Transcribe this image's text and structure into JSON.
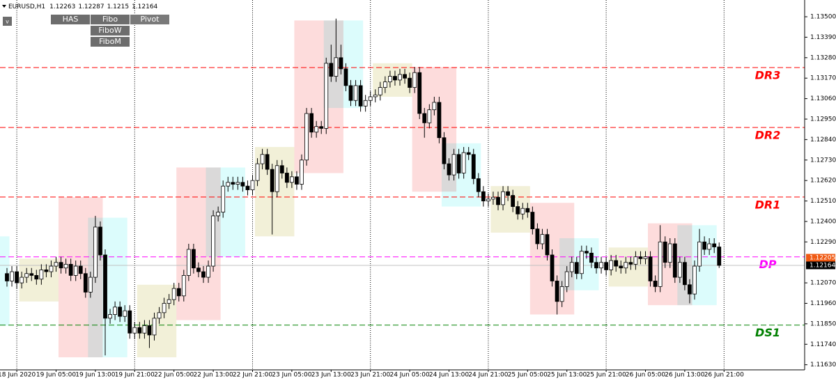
{
  "chart_data": {
    "type": "candlestick",
    "symbol": "EURUSD,H1",
    "buttons": [
      "HAS",
      "Fibo",
      "Pivot",
      "FiboW",
      "FiboM"
    ],
    "menu_button": "v",
    "ylim": [
      1.1161,
      1.1359
    ],
    "yticks": [
      {
        "value": 1.135,
        "label": "1.13500"
      },
      {
        "value": 1.1339,
        "label": "1.13390"
      },
      {
        "value": 1.1328,
        "label": "1.13280"
      },
      {
        "value": 1.1317,
        "label": "1.13170"
      },
      {
        "value": 1.1306,
        "label": "1.13060"
      },
      {
        "value": 1.1295,
        "label": "1.12950"
      },
      {
        "value": 1.1284,
        "label": "1.12840"
      },
      {
        "value": 1.1273,
        "label": "1.12730"
      },
      {
        "value": 1.1262,
        "label": "1.12620"
      },
      {
        "value": 1.1251,
        "label": "1.12510"
      },
      {
        "value": 1.124,
        "label": "1.12400"
      },
      {
        "value": 1.1229,
        "label": "1.12290"
      },
      {
        "value": 1.1207,
        "label": "1.12070"
      },
      {
        "value": 1.1196,
        "label": "1.11960"
      },
      {
        "value": 1.1185,
        "label": "1.11850"
      },
      {
        "value": 1.1174,
        "label": "1.11740"
      },
      {
        "value": 1.1163,
        "label": "1.11630"
      }
    ],
    "xticks": [
      {
        "value": 2,
        "label": "18 Jun 2020"
      },
      {
        "value": 10,
        "label": "19 Jun 05:00"
      },
      {
        "value": 18,
        "label": "19 Jun 13:00"
      },
      {
        "value": 26,
        "label": "19 Jun 21:00"
      },
      {
        "value": 34,
        "label": "22 Jun 05:00"
      },
      {
        "value": 42,
        "label": "22 Jun 13:00"
      },
      {
        "value": 50,
        "label": "22 Jun 21:00"
      },
      {
        "value": 58,
        "label": "23 Jun 05:00"
      },
      {
        "value": 66,
        "label": "23 Jun 13:00"
      },
      {
        "value": 74,
        "label": "23 Jun 21:00"
      },
      {
        "value": 82,
        "label": "24 Jun 05:00"
      },
      {
        "value": 90,
        "label": "24 Jun 13:00"
      },
      {
        "value": 98,
        "label": "24 Jun 21:00"
      },
      {
        "value": 106,
        "label": "25 Jun 05:00"
      },
      {
        "value": 114,
        "label": "25 Jun 13:00"
      },
      {
        "value": 122,
        "label": "25 Jun 21:00"
      },
      {
        "value": 130,
        "label": "26 Jun 05:00"
      },
      {
        "value": 138,
        "label": "26 Jun 13:00"
      },
      {
        "value": 146,
        "label": "26 Jun 21:00"
      }
    ],
    "up_color": "#ffffff",
    "down_color": "#000000",
    "open": [
      1.1212,
      1.1208,
      1.1213,
      1.1207,
      1.121,
      1.1212,
      1.1211,
      1.1209,
      1.1214,
      1.1213,
      1.1216,
      1.1218,
      1.1215,
      1.1217,
      1.1211,
      1.1216,
      1.1212,
      1.1202,
      1.121,
      1.1237,
      1.1222,
      1.1188,
      1.119,
      1.1194,
      1.1189,
      1.1192,
      1.118,
      1.1183,
      1.118,
      1.1184,
      1.1179,
      1.1188,
      1.1191,
      1.1196,
      1.1198,
      1.1204,
      1.12,
      1.1211,
      1.1225,
      1.1215,
      1.1213,
      1.121,
      1.1216,
      1.1243,
      1.1245,
      1.1259,
      1.1261,
      1.126,
      1.1261,
      1.1259,
      1.1257,
      1.1262,
      1.1271,
      1.1276,
      1.1268,
      1.1256,
      1.127,
      1.1266,
      1.1261,
      1.1264,
      1.126,
      1.1273,
      1.1298,
      1.1288,
      1.1291,
      1.129,
      1.1325,
      1.1318,
      1.1328,
      1.1322,
      1.1313,
      1.1305,
      1.1313,
      1.1302,
      1.1305,
      1.1307,
      1.1308,
      1.1312,
      1.1315,
      1.1318,
      1.1316,
      1.1319,
      1.1317,
      1.1312,
      1.132,
      1.1298,
      1.1293,
      1.13,
      1.1304,
      1.1285,
      1.1271,
      1.1265,
      1.1276,
      1.1266,
      1.1277,
      1.1276,
      1.1263,
      1.1256,
      1.1251,
      1.1252,
      1.1253,
      1.1249,
      1.1256,
      1.1254,
      1.1248,
      1.1244,
      1.1247,
      1.1245,
      1.1236,
      1.1228,
      1.1233,
      1.1222,
      1.1208,
      1.1197,
      1.1205,
      1.1213,
      1.1218,
      1.1212,
      1.1224,
      1.1223,
      1.1218,
      1.1215,
      1.1218,
      1.1214,
      1.1219,
      1.1216,
      1.1215,
      1.1218,
      1.1217,
      1.1221,
      1.122,
      1.1221,
      1.1208,
      1.1205,
      1.1229,
      1.1218,
      1.1228,
      1.121,
      1.1218,
      1.1206,
      1.1201,
      1.1216,
      1.1229,
      1.1225,
      1.1228,
      1.12263
    ],
    "high": [
      1.1215,
      1.1216,
      1.1216,
      1.1213,
      1.1215,
      1.1215,
      1.1214,
      1.1217,
      1.1217,
      1.1219,
      1.1221,
      1.1221,
      1.122,
      1.122,
      1.1219,
      1.1219,
      1.1215,
      1.1213,
      1.1243,
      1.124,
      1.1225,
      1.1193,
      1.1197,
      1.1197,
      1.1195,
      1.1195,
      1.1186,
      1.1186,
      1.1187,
      1.1187,
      1.1191,
      1.1194,
      1.1199,
      1.1201,
      1.1207,
      1.1207,
      1.1214,
      1.1228,
      1.1228,
      1.1218,
      1.1216,
      1.1219,
      1.1246,
      1.1248,
      1.1262,
      1.1264,
      1.1264,
      1.1264,
      1.1264,
      1.1262,
      1.1265,
      1.1274,
      1.1279,
      1.1279,
      1.1271,
      1.1273,
      1.1273,
      1.1269,
      1.1267,
      1.1267,
      1.1276,
      1.1301,
      1.1301,
      1.1294,
      1.1294,
      1.1328,
      1.1335,
      1.1349,
      1.1335,
      1.1325,
      1.1316,
      1.1316,
      1.1316,
      1.1308,
      1.131,
      1.1311,
      1.1315,
      1.1318,
      1.1321,
      1.1321,
      1.1322,
      1.1322,
      1.132,
      1.1323,
      1.1323,
      1.1301,
      1.1303,
      1.1307,
      1.1307,
      1.1288,
      1.1274,
      1.1279,
      1.1279,
      1.128,
      1.128,
      1.1279,
      1.1266,
      1.1259,
      1.1255,
      1.1256,
      1.1256,
      1.1259,
      1.1259,
      1.1257,
      1.1251,
      1.125,
      1.125,
      1.1248,
      1.1239,
      1.1236,
      1.1236,
      1.1225,
      1.1211,
      1.1208,
      1.1216,
      1.1221,
      1.1221,
      1.1227,
      1.1227,
      1.1226,
      1.1221,
      1.1221,
      1.1221,
      1.1222,
      1.1222,
      1.1219,
      1.1221,
      1.1221,
      1.1224,
      1.1224,
      1.1224,
      1.1224,
      1.1211,
      1.1238,
      1.1232,
      1.1231,
      1.1231,
      1.1221,
      1.1221,
      1.1209,
      1.1219,
      1.1236,
      1.1232,
      1.1231,
      1.1231,
      1.12287
    ],
    "low": [
      1.1205,
      1.1205,
      1.1204,
      1.1204,
      1.1207,
      1.1208,
      1.1206,
      1.1206,
      1.121,
      1.121,
      1.1213,
      1.1212,
      1.1212,
      1.1208,
      1.1208,
      1.1209,
      1.1199,
      1.1199,
      1.1207,
      1.1219,
      1.1168,
      1.1185,
      1.1187,
      1.1186,
      1.1186,
      1.1177,
      1.1177,
      1.1177,
      1.1177,
      1.1172,
      1.1176,
      1.1185,
      1.1188,
      1.1193,
      1.1195,
      1.1197,
      1.1197,
      1.1208,
      1.1212,
      1.121,
      1.1207,
      1.1207,
      1.1213,
      1.124,
      1.1242,
      1.1256,
      1.1257,
      1.1257,
      1.1256,
      1.1254,
      1.1254,
      1.1259,
      1.1268,
      1.1265,
      1.1233,
      1.1253,
      1.1263,
      1.1258,
      1.1258,
      1.1257,
      1.1257,
      1.127,
      1.1285,
      1.1285,
      1.1287,
      1.1287,
      1.1315,
      1.1315,
      1.1319,
      1.131,
      1.1302,
      1.1302,
      1.1299,
      1.1299,
      1.1302,
      1.1304,
      1.1305,
      1.1309,
      1.1312,
      1.1313,
      1.1313,
      1.1314,
      1.1309,
      1.1309,
      1.1295,
      1.1285,
      1.129,
      1.1297,
      1.1282,
      1.1268,
      1.1262,
      1.1262,
      1.1263,
      1.1263,
      1.1273,
      1.126,
      1.1253,
      1.1248,
      1.1248,
      1.1249,
      1.1246,
      1.1246,
      1.1251,
      1.1245,
      1.1241,
      1.1241,
      1.1242,
      1.1233,
      1.1225,
      1.1225,
      1.1219,
      1.1205,
      1.119,
      1.1194,
      1.1202,
      1.121,
      1.1209,
      1.1209,
      1.122,
      1.1215,
      1.1212,
      1.1212,
      1.1211,
      1.1211,
      1.1213,
      1.1212,
      1.1212,
      1.1214,
      1.1214,
      1.1217,
      1.1217,
      1.1205,
      1.1202,
      1.1202,
      1.1215,
      1.1215,
      1.1207,
      1.1207,
      1.1203,
      1.1196,
      1.1198,
      1.1213,
      1.1222,
      1.1222,
      1.1223,
      1.1215
    ],
    "close": [
      1.1208,
      1.1213,
      1.1207,
      1.121,
      1.1212,
      1.1211,
      1.1209,
      1.1214,
      1.1213,
      1.1216,
      1.1218,
      1.1215,
      1.1217,
      1.1211,
      1.1216,
      1.1212,
      1.1202,
      1.121,
      1.1237,
      1.1222,
      1.1188,
      1.119,
      1.1194,
      1.1189,
      1.1192,
      1.118,
      1.1183,
      1.118,
      1.1184,
      1.1179,
      1.1188,
      1.1191,
      1.1196,
      1.1198,
      1.1204,
      1.12,
      1.1211,
      1.1225,
      1.1215,
      1.1213,
      1.121,
      1.1216,
      1.1243,
      1.1245,
      1.1259,
      1.1261,
      1.126,
      1.1261,
      1.1259,
      1.1257,
      1.1262,
      1.1271,
      1.1276,
      1.1268,
      1.1256,
      1.127,
      1.1266,
      1.1261,
      1.1264,
      1.126,
      1.1273,
      1.1298,
      1.1288,
      1.1291,
      1.129,
      1.1325,
      1.1318,
      1.1328,
      1.1322,
      1.1313,
      1.1305,
      1.1313,
      1.1302,
      1.1305,
      1.1307,
      1.1308,
      1.1312,
      1.1315,
      1.1318,
      1.1316,
      1.1319,
      1.1317,
      1.1312,
      1.132,
      1.1298,
      1.1293,
      1.13,
      1.1304,
      1.1285,
      1.1271,
      1.1265,
      1.1276,
      1.1266,
      1.1277,
      1.1276,
      1.1263,
      1.1256,
      1.1251,
      1.1252,
      1.1253,
      1.1249,
      1.1256,
      1.1254,
      1.1248,
      1.1244,
      1.1247,
      1.1245,
      1.1236,
      1.1228,
      1.1233,
      1.1222,
      1.1208,
      1.1197,
      1.1205,
      1.1213,
      1.1218,
      1.1212,
      1.1224,
      1.1223,
      1.1218,
      1.1215,
      1.1218,
      1.1214,
      1.1219,
      1.1216,
      1.1215,
      1.1218,
      1.1217,
      1.1221,
      1.122,
      1.1221,
      1.1208,
      1.1205,
      1.1229,
      1.1218,
      1.1228,
      1.121,
      1.1218,
      1.1206,
      1.1201,
      1.1216,
      1.1229,
      1.1225,
      1.1228,
      1.12263,
      1.12164
    ],
    "zones": [
      {
        "start": -1.5,
        "end": 0.5,
        "low": 1.1184,
        "high": 1.1232,
        "color": "#dcfcfc"
      },
      {
        "start": 2.5,
        "end": 10.5,
        "low": 1.1197,
        "high": 1.122,
        "color": "#f2f0d8"
      },
      {
        "start": 10.5,
        "end": 19.5,
        "low": 1.1167,
        "high": 1.1253,
        "color": "#fddcdc"
      },
      {
        "start": 16.5,
        "end": 24.5,
        "low": 1.1167,
        "high": 1.1242,
        "color": "#dcfcfc"
      },
      {
        "start": 26.5,
        "end": 34.5,
        "low": 1.1167,
        "high": 1.1206,
        "color": "#f2f0d8"
      },
      {
        "start": 34.5,
        "end": 43.5,
        "low": 1.1187,
        "high": 1.1269,
        "color": "#fddcdc"
      },
      {
        "start": 40.5,
        "end": 48.5,
        "low": 1.1221,
        "high": 1.1269,
        "color": "#dcfcfc"
      },
      {
        "start": 50.5,
        "end": 58.5,
        "low": 1.1232,
        "high": 1.128,
        "color": "#f2f0d8"
      },
      {
        "start": 58.5,
        "end": 68.5,
        "low": 1.1266,
        "high": 1.1348,
        "color": "#fddcdc"
      },
      {
        "start": 64.5,
        "end": 72.5,
        "low": 1.1301,
        "high": 1.1348,
        "color": "#dcfcfc"
      },
      {
        "start": 74.5,
        "end": 82.5,
        "low": 1.1307,
        "high": 1.1325,
        "color": "#f2f0d8"
      },
      {
        "start": 82.5,
        "end": 91.5,
        "low": 1.1256,
        "high": 1.1323,
        "color": "#fddcdc"
      },
      {
        "start": 88.5,
        "end": 96.5,
        "low": 1.1248,
        "high": 1.1282,
        "color": "#dcfcfc"
      },
      {
        "start": 98.5,
        "end": 106.5,
        "low": 1.1234,
        "high": 1.1259,
        "color": "#f2f0d8"
      },
      {
        "start": 106.5,
        "end": 115.5,
        "low": 1.119,
        "high": 1.125,
        "color": "#fddcdc"
      },
      {
        "start": 112.5,
        "end": 120.5,
        "low": 1.1203,
        "high": 1.1231,
        "color": "#dcfcfc"
      },
      {
        "start": 122.5,
        "end": 130.5,
        "low": 1.1205,
        "high": 1.1226,
        "color": "#f2f0d8"
      },
      {
        "start": 130.5,
        "end": 139.5,
        "low": 1.1195,
        "high": 1.1239,
        "color": "#fddcdc"
      },
      {
        "start": 136.5,
        "end": 144.5,
        "low": 1.1195,
        "high": 1.1238,
        "color": "#dcfcfc"
      }
    ],
    "levels": [
      {
        "name": "DR3",
        "value": 1.13227,
        "color": "#ff0000"
      },
      {
        "name": "DR2",
        "value": 1.12905,
        "color": "#ff0000"
      },
      {
        "name": "DR1",
        "value": 1.12531,
        "color": "#ff0000"
      },
      {
        "name": "DP",
        "value": 1.1221,
        "color": "#ff00ff"
      },
      {
        "name": "DS1",
        "value": 1.11843,
        "color": "#008000"
      }
    ],
    "ask_tag": {
      "value": 1.12205,
      "color": "#f05a14"
    }
  }
}
